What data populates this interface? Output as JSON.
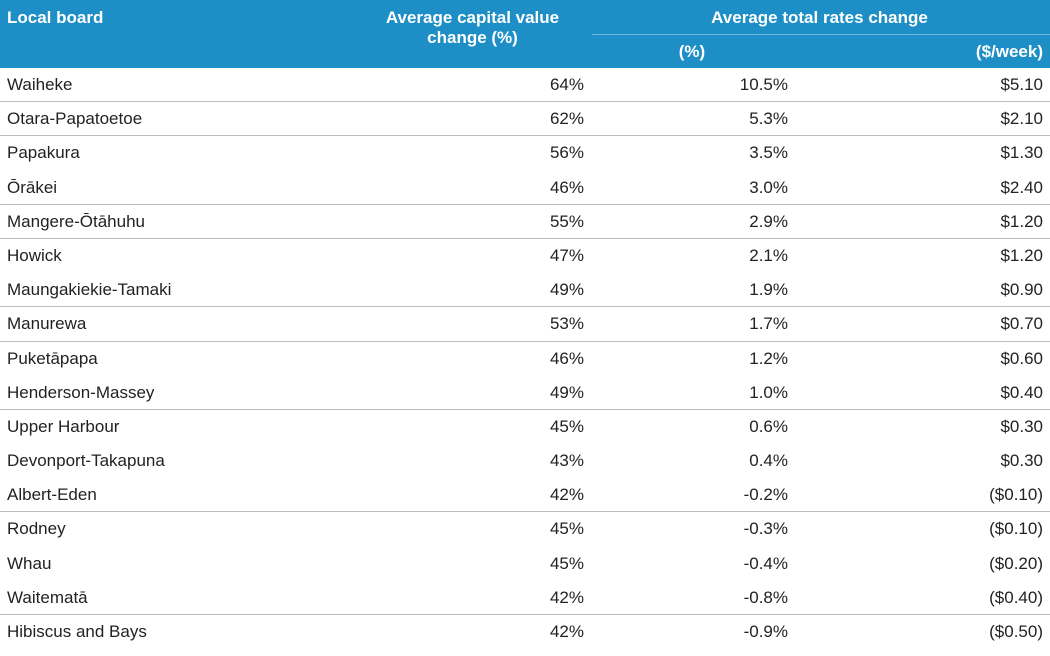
{
  "header": {
    "local_board": "Local board",
    "capital_value": "Average capital value change (%)",
    "rates_change": "Average total rates change",
    "pct": "(%)",
    "week": "($/week)"
  },
  "colors": {
    "header_bg": "#1E8FC6",
    "header_text": "#ffffff",
    "row_divider": "#bdbdbd"
  },
  "rows": [
    {
      "board": "Waiheke",
      "cap": "64%",
      "pct": "10.5%",
      "week": "$5.10",
      "line": true
    },
    {
      "board": "Otara-Papatoetoe",
      "cap": "62%",
      "pct": "5.3%",
      "week": "$2.10",
      "line": true
    },
    {
      "board": "Papakura",
      "cap": "56%",
      "pct": "3.5%",
      "week": "$1.30",
      "line": false
    },
    {
      "board": "Ōrākei",
      "cap": "46%",
      "pct": "3.0%",
      "week": "$2.40",
      "line": true
    },
    {
      "board": "Mangere-Ōtāhuhu",
      "cap": "55%",
      "pct": "2.9%",
      "week": "$1.20",
      "line": true
    },
    {
      "board": "Howick",
      "cap": "47%",
      "pct": "2.1%",
      "week": "$1.20",
      "line": false
    },
    {
      "board": "Maungakiekie-Tamaki",
      "cap": "49%",
      "pct": "1.9%",
      "week": "$0.90",
      "line": true
    },
    {
      "board": "Manurewa",
      "cap": "53%",
      "pct": "1.7%",
      "week": "$0.70",
      "line": true
    },
    {
      "board": "Puketāpapa",
      "cap": "46%",
      "pct": "1.2%",
      "week": "$0.60",
      "line": false
    },
    {
      "board": "Henderson-Massey",
      "cap": "49%",
      "pct": "1.0%",
      "week": "$0.40",
      "line": true
    },
    {
      "board": "Upper Harbour",
      "cap": "45%",
      "pct": "0.6%",
      "week": "$0.30",
      "line": false
    },
    {
      "board": "Devonport-Takapuna",
      "cap": "43%",
      "pct": "0.4%",
      "week": "$0.30",
      "line": false
    },
    {
      "board": "Albert-Eden",
      "cap": "42%",
      "pct": "-0.2%",
      "week": "($0.10)",
      "line": true
    },
    {
      "board": "Rodney",
      "cap": "45%",
      "pct": "-0.3%",
      "week": "($0.10)",
      "line": false
    },
    {
      "board": "Whau",
      "cap": "45%",
      "pct": "-0.4%",
      "week": "($0.20)",
      "line": false
    },
    {
      "board": "Waitematā",
      "cap": "42%",
      "pct": "-0.8%",
      "week": "($0.40)",
      "line": true
    },
    {
      "board": "Hibiscus and Bays",
      "cap": "42%",
      "pct": "-0.9%",
      "week": "($0.50)",
      "line": false
    }
  ]
}
